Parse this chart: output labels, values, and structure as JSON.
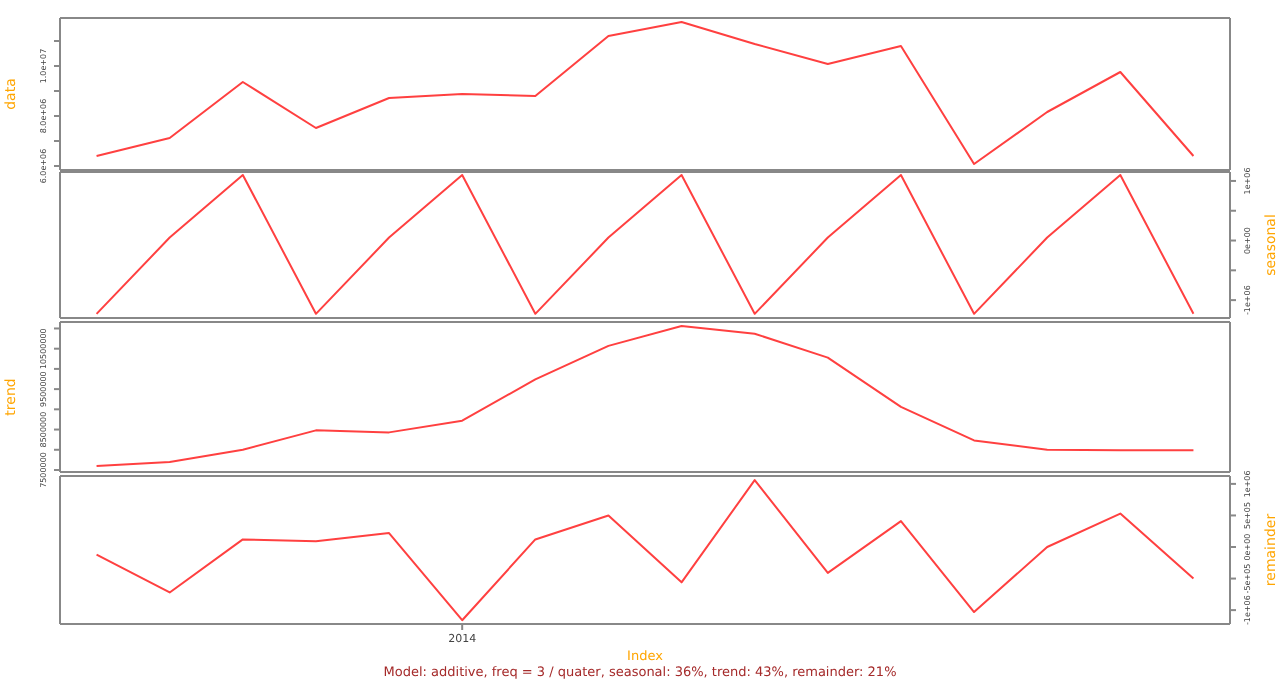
{
  "chart_data": [
    {
      "type": "line",
      "ylabel": "data",
      "categories": [
        null,
        null,
        null,
        null,
        null,
        null,
        null,
        null,
        null,
        null,
        null,
        null,
        null,
        null,
        null,
        null
      ],
      "color": "#ff4040",
      "values": [
        6400000,
        7120000,
        9360000,
        7520000,
        8720000,
        8880000,
        8800000,
        11200000,
        11760000,
        10880000,
        10080000,
        10800000,
        6080000,
        8160000,
        9760000,
        6400000
      ],
      "ylim": [
        5840000,
        11920000
      ],
      "yticks": [
        {
          "value": 6000000,
          "label": "6.0e+06"
        },
        {
          "value": 7000000,
          "label": null
        },
        {
          "value": 8000000,
          "label": "8.0e+06"
        },
        {
          "value": 9000000,
          "label": null
        },
        {
          "value": 10000000,
          "label": "1.0e+07"
        },
        {
          "value": 11000000,
          "label": null
        }
      ],
      "tick_labels": "y"
    },
    {
      "type": "line",
      "ylabel": "seasonal",
      "categories": [
        null,
        null,
        null,
        null,
        null,
        null,
        null,
        null,
        null,
        null,
        null,
        null,
        null,
        null,
        null,
        null
      ],
      "color": "#ff4040",
      "values": [
        -1230000,
        50000,
        1100000,
        -1230000,
        50000,
        1100000,
        -1230000,
        50000,
        1100000,
        -1230000,
        50000,
        1100000,
        -1230000,
        50000,
        1100000,
        -1230000
      ],
      "ylim": [
        -1300000,
        1150000
      ],
      "yticks": [
        {
          "value": -1000000,
          "label": "-1e+06"
        },
        {
          "value": -500000,
          "label": null
        },
        {
          "value": 0,
          "label": "0e+00"
        },
        {
          "value": 500000,
          "label": null
        },
        {
          "value": 1000000,
          "label": "1e+06"
        }
      ],
      "tick_labels": "y"
    },
    {
      "type": "line",
      "ylabel": "trend",
      "categories": [
        null,
        null,
        null,
        null,
        null,
        null,
        null,
        null,
        null,
        null,
        null,
        null,
        null,
        null,
        null,
        null
      ],
      "color": "#ff4040",
      "values": [
        7600000,
        7700000,
        8000000,
        8480000,
        8430000,
        8720000,
        9740000,
        10570000,
        11060000,
        10870000,
        10280000,
        9060000,
        8230000,
        8000000,
        7990000,
        7990000
      ],
      "ylim": [
        7450000,
        11160000
      ],
      "yticks": [
        {
          "value": 7500000,
          "label": "7500000"
        },
        {
          "value": 8000000,
          "label": null
        },
        {
          "value": 8500000,
          "label": "8500000"
        },
        {
          "value": 9000000,
          "label": null
        },
        {
          "value": 9500000,
          "label": "9500000"
        },
        {
          "value": 10000000,
          "label": null
        },
        {
          "value": 10500000,
          "label": "10500000"
        },
        {
          "value": 11000000,
          "label": null
        }
      ],
      "tick_labels": "y"
    },
    {
      "type": "line",
      "ylabel": "remainder",
      "xlabel": "Index",
      "categories": [
        null,
        null,
        null,
        null,
        null,
        "2014",
        null,
        null,
        null,
        null,
        null,
        null,
        null,
        null,
        null,
        null
      ],
      "color": "#ff4040",
      "values": [
        -120000,
        -720000,
        120000,
        90000,
        220000,
        -1160000,
        120000,
        500000,
        -560000,
        1060000,
        -410000,
        410000,
        -1030000,
        0,
        530000,
        -500000
      ],
      "ylim": [
        -1220000,
        1125000
      ],
      "yticks": [
        {
          "value": -1000000,
          "label": "-1e+06"
        },
        {
          "value": -500000,
          "label": "-5e+05"
        },
        {
          "value": 0,
          "label": "0e+00"
        },
        {
          "value": 500000,
          "label": "5e+05"
        },
        {
          "value": 1000000,
          "label": "1e+06"
        }
      ],
      "annotations": [
        "Model: additive, freq = 3 / quater, seasonal: 36%, trend: 43%, remainder: 21%"
      ]
    }
  ]
}
